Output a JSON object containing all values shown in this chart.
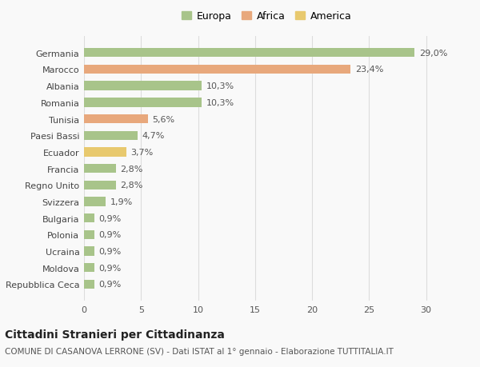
{
  "categories": [
    "Repubblica Ceca",
    "Moldova",
    "Ucraina",
    "Polonia",
    "Bulgaria",
    "Svizzera",
    "Regno Unito",
    "Francia",
    "Ecuador",
    "Paesi Bassi",
    "Tunisia",
    "Romania",
    "Albania",
    "Marocco",
    "Germania"
  ],
  "values": [
    0.9,
    0.9,
    0.9,
    0.9,
    0.9,
    1.9,
    2.8,
    2.8,
    3.7,
    4.7,
    5.6,
    10.3,
    10.3,
    23.4,
    29.0
  ],
  "labels": [
    "0,9%",
    "0,9%",
    "0,9%",
    "0,9%",
    "0,9%",
    "1,9%",
    "2,8%",
    "2,8%",
    "3,7%",
    "4,7%",
    "5,6%",
    "10,3%",
    "10,3%",
    "23,4%",
    "29,0%"
  ],
  "colors": [
    "#a8c48a",
    "#a8c48a",
    "#a8c48a",
    "#a8c48a",
    "#a8c48a",
    "#a8c48a",
    "#a8c48a",
    "#a8c48a",
    "#e8c96e",
    "#a8c48a",
    "#e8a87c",
    "#a8c48a",
    "#a8c48a",
    "#e8a87c",
    "#a8c48a"
  ],
  "legend_labels": [
    "Europa",
    "Africa",
    "America"
  ],
  "legend_colors": [
    "#a8c48a",
    "#e8a87c",
    "#e8c96e"
  ],
  "title": "Cittadini Stranieri per Cittadinanza",
  "subtitle": "COMUNE DI CASANOVA LERRONE (SV) - Dati ISTAT al 1° gennaio - Elaborazione TUTTITALIA.IT",
  "xlim": [
    0,
    32
  ],
  "xticks": [
    0,
    5,
    10,
    15,
    20,
    25,
    30
  ],
  "background_color": "#f9f9f9",
  "grid_color": "#dddddd",
  "bar_height": 0.55,
  "title_fontsize": 10,
  "subtitle_fontsize": 7.5,
  "tick_fontsize": 8,
  "label_fontsize": 8
}
